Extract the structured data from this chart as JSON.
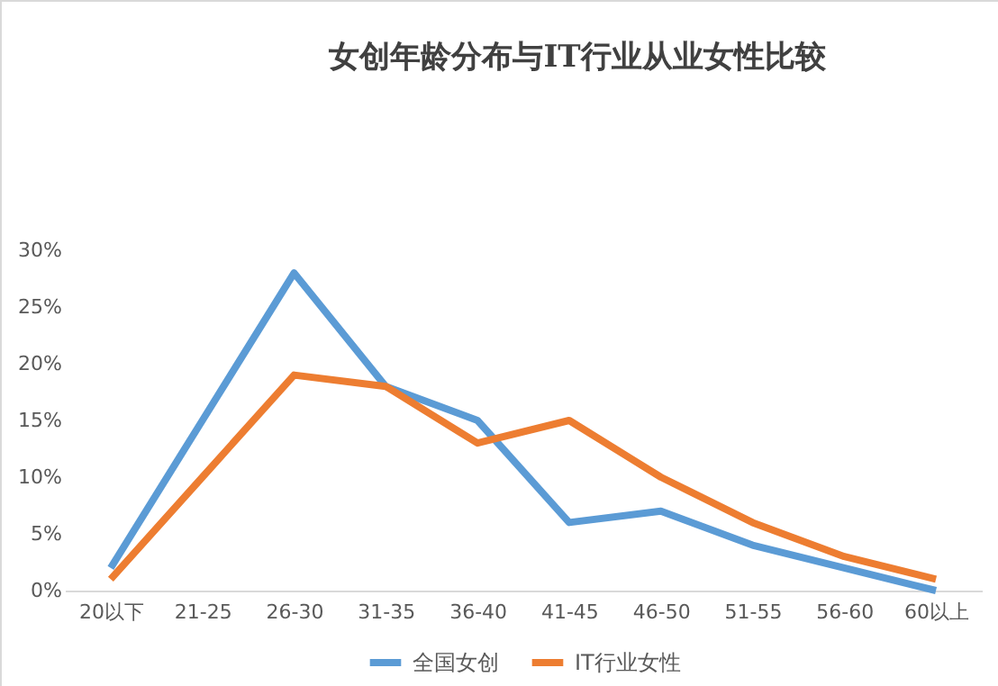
{
  "chart_data": {
    "type": "line",
    "title": "女创年龄分布与IT行业从业女性比较",
    "categories": [
      "20以下",
      "21-25",
      "26-30",
      "31-35",
      "36-40",
      "41-45",
      "46-50",
      "51-55",
      "56-60",
      "60以上"
    ],
    "series": [
      {
        "name": "全国女创",
        "color": "#5b9bd5",
        "values": [
          2,
          15,
          28,
          18,
          15,
          6,
          7,
          4,
          2,
          0
        ]
      },
      {
        "name": "IT行业女性",
        "color": "#ed7d31",
        "values": [
          1,
          10,
          19,
          18,
          13,
          15,
          10,
          6,
          3,
          1
        ]
      }
    ],
    "ylim": [
      0,
      30
    ],
    "yticks": [
      {
        "value": 0,
        "label": "0%"
      },
      {
        "value": 5,
        "label": "5%"
      },
      {
        "value": 10,
        "label": "10%"
      },
      {
        "value": 15,
        "label": "15%"
      },
      {
        "value": 20,
        "label": "20%"
      },
      {
        "value": 25,
        "label": "25%"
      },
      {
        "value": 30,
        "label": "30%"
      }
    ],
    "grid": false,
    "legend": "bottom",
    "marker": "none",
    "line_style": "solid"
  }
}
